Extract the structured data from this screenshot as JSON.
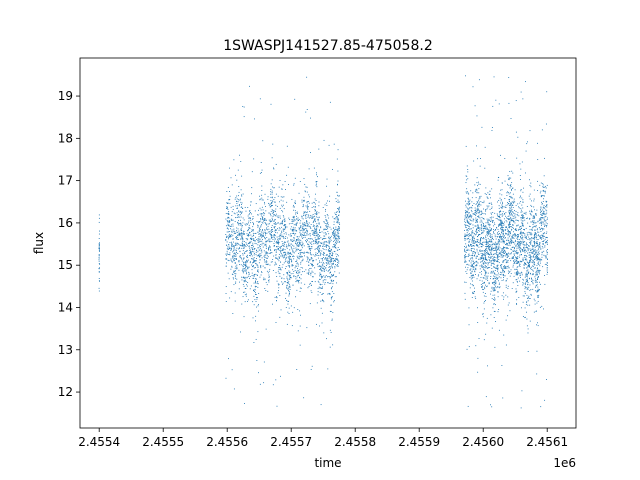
{
  "chart_data": {
    "type": "scatter",
    "title": "1SWASPJ141527.85-475058.2",
    "xlabel": "time",
    "ylabel": "flux",
    "x_offset_label": "1e6",
    "xlim": [
      2455370,
      2456145
    ],
    "ylim": [
      11.15,
      19.9
    ],
    "x_ticks": [
      2455400,
      2455500,
      2455600,
      2455700,
      2455800,
      2455900,
      2456000,
      2456100
    ],
    "x_tick_labels": [
      "2.4554",
      "2.4555",
      "2.4556",
      "2.4557",
      "2.4558",
      "2.4559",
      "2.4560",
      "2.4561"
    ],
    "y_ticks": [
      12,
      13,
      14,
      15,
      16,
      17,
      18,
      19
    ],
    "y_tick_labels": [
      "12",
      "13",
      "14",
      "15",
      "16",
      "17",
      "18",
      "19"
    ],
    "grid": false,
    "legend": "none",
    "marker_color": "#1f77b4",
    "series": [
      {
        "segments": [
          {
            "x_range": [
              2455399,
              2455400
            ],
            "flux_median": 15.3,
            "flux_spread": 0.5,
            "outlier_range": [
              14.4,
              16.2
            ],
            "points": 40
          },
          {
            "x_range": [
              2455597,
              2455775
            ],
            "flux_median": 15.5,
            "flux_spread": 0.55,
            "outlier_range": [
              11.6,
              19.5
            ],
            "points": 2600
          },
          {
            "x_range": [
              2455970,
              2456100
            ],
            "flux_median": 15.5,
            "flux_spread": 0.6,
            "outlier_range": [
              11.6,
              19.5
            ],
            "points": 2600
          }
        ]
      }
    ]
  }
}
